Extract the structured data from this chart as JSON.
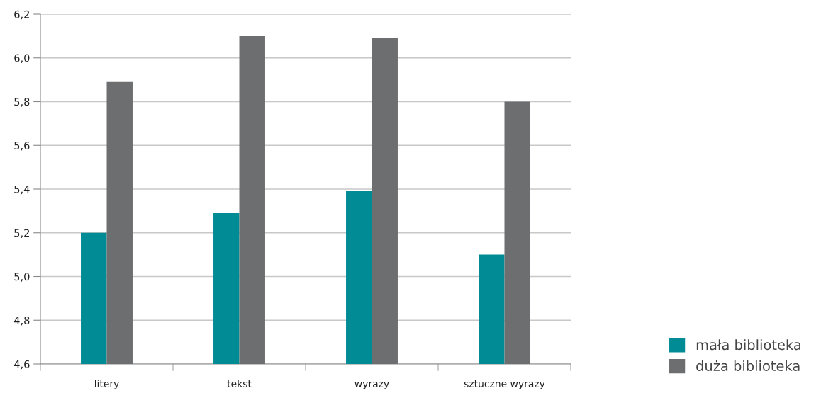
{
  "chart_data": {
    "type": "bar",
    "categories": [
      "litery",
      "tekst",
      "wyrazy",
      "sztuczne wyrazy"
    ],
    "series": [
      {
        "name": "mała biblioteka",
        "color": "#008b95",
        "values": [
          5.2,
          5.29,
          5.39,
          5.1
        ]
      },
      {
        "name": "duża biblioteka",
        "color": "#6d6e70",
        "values": [
          5.89,
          6.1,
          6.09,
          5.8
        ]
      }
    ],
    "ylim": [
      4.6,
      6.2
    ],
    "yticks": [
      {
        "value": 4.6,
        "label": "4,6"
      },
      {
        "value": 4.8,
        "label": "4,8"
      },
      {
        "value": 5.0,
        "label": "5,0"
      },
      {
        "value": 5.2,
        "label": "5,2"
      },
      {
        "value": 5.4,
        "label": "5,4"
      },
      {
        "value": 5.6,
        "label": "5,6"
      },
      {
        "value": 5.8,
        "label": "5,8"
      },
      {
        "value": 6.0,
        "label": "6,0"
      },
      {
        "value": 6.2,
        "label": "6,2"
      }
    ],
    "grid": "y",
    "legend": "bottom right"
  }
}
